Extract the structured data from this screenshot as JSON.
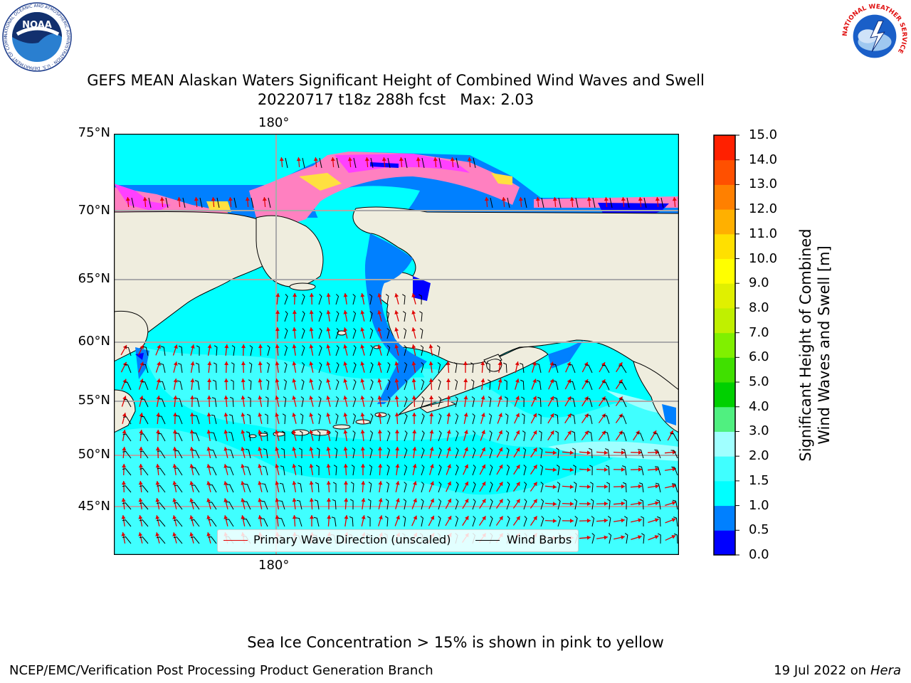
{
  "title": {
    "line1": "GEFS MEAN Alaskan Waters Significant Height of Combined Wind Waves and Swell",
    "line2": "20220717 t18z 288h fcst   Max: 2.03"
  },
  "logos": {
    "noaa_text": "NOAA",
    "noaa_ring": "NATIONAL OCEANIC AND ATMOSPHERIC ADMINISTRATION · U.S. DEPARTMENT OF COMMERCE",
    "nws_ring": "NATIONAL WEATHER SERVICE"
  },
  "map": {
    "lon_label_top": "180°",
    "lon_label_bottom": "180°",
    "lat_labels": [
      "75°N",
      "70°N",
      "65°N",
      "60°N",
      "55°N",
      "50°N",
      "45°N"
    ],
    "colors": {
      "land": "#efedde",
      "ocean_low": "#00ffff",
      "ocean_mid": "#40ffff",
      "coastal": "#0080ff",
      "deep_blue": "#0000ff",
      "ice_pink": "#ff80c0",
      "ice_magenta": "#ff40ff",
      "ice_yellow": "#ffe040",
      "wave_arrow": "#e00000",
      "wind_barb": "#000000",
      "grid": "#aaaaaa"
    }
  },
  "legend": {
    "wave_label": "Primary Wave Direction (unscaled)",
    "wind_label": "Wind Barbs"
  },
  "colorbar": {
    "title_line1": "Significant Height of Combined",
    "title_line2": "Wind Waves and Swell [m]",
    "ticks": [
      "0.0",
      "0.5",
      "1.0",
      "1.5",
      "2.0",
      "3.0",
      "4.0",
      "5.0",
      "6.0",
      "7.0",
      "8.0",
      "9.0",
      "10.0",
      "11.0",
      "12.0",
      "13.0",
      "14.0",
      "15.0"
    ],
    "colors": [
      "#0000ff",
      "#0080ff",
      "#00ffff",
      "#40ffff",
      "#a0ffff",
      "#50f080",
      "#00d000",
      "#40e000",
      "#80f000",
      "#c0f000",
      "#e0f000",
      "#ffff00",
      "#ffe000",
      "#ffb000",
      "#ff8000",
      "#ff5000",
      "#ff2000"
    ]
  },
  "note": "Sea Ice Concentration > 15% is shown in pink to yellow",
  "footer": {
    "left": "NCEP/EMC/Verification Post Processing Product Generation Branch",
    "right_prefix": "19 Jul 2022 on ",
    "right_host": "Hera"
  }
}
